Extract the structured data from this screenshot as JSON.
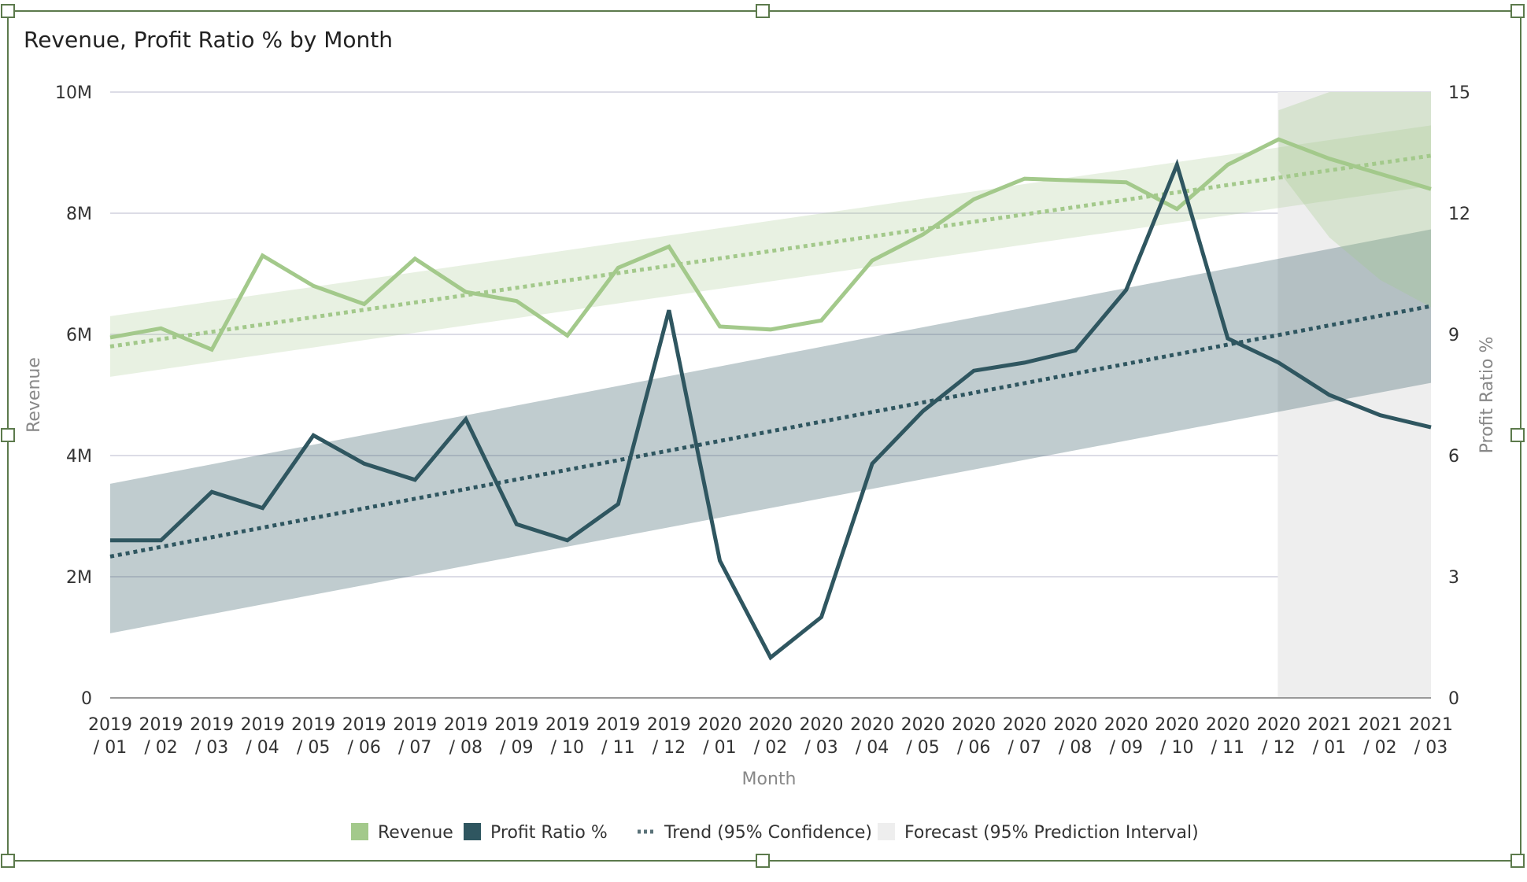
{
  "chart_data": {
    "type": "line",
    "title": "Revenue, Profit Ratio % by Month",
    "xlabel": "Month",
    "ylabel": "Revenue",
    "y2label": "Profit Ratio %",
    "ylim": [
      0,
      10000000
    ],
    "y2lim": [
      0,
      15
    ],
    "y_ticks": [
      "0",
      "2M",
      "4M",
      "6M",
      "8M",
      "10M"
    ],
    "y2_ticks": [
      "0",
      "3",
      "6",
      "9",
      "12",
      "15"
    ],
    "grid": true,
    "legend_position": "bottom",
    "categories": [
      [
        "2019",
        "/ 01"
      ],
      [
        "2019",
        "/ 02"
      ],
      [
        "2019",
        "/ 03"
      ],
      [
        "2019",
        "/ 04"
      ],
      [
        "2019",
        "/ 05"
      ],
      [
        "2019",
        "/ 06"
      ],
      [
        "2019",
        "/ 07"
      ],
      [
        "2019",
        "/ 08"
      ],
      [
        "2019",
        "/ 09"
      ],
      [
        "2019",
        "/ 10"
      ],
      [
        "2019",
        "/ 11"
      ],
      [
        "2019",
        "/ 12"
      ],
      [
        "2020",
        "/ 01"
      ],
      [
        "2020",
        "/ 02"
      ],
      [
        "2020",
        "/ 03"
      ],
      [
        "2020",
        "/ 04"
      ],
      [
        "2020",
        "/ 05"
      ],
      [
        "2020",
        "/ 06"
      ],
      [
        "2020",
        "/ 07"
      ],
      [
        "2020",
        "/ 08"
      ],
      [
        "2020",
        "/ 09"
      ],
      [
        "2020",
        "/ 10"
      ],
      [
        "2020",
        "/ 11"
      ],
      [
        "2020",
        "/ 12"
      ],
      [
        "2021",
        "/ 01"
      ],
      [
        "2021",
        "/ 02"
      ],
      [
        "2021",
        "/ 03"
      ]
    ],
    "forecast_start_index": 23,
    "series": [
      {
        "name": "Revenue",
        "axis": "left",
        "color": "#a3c98b",
        "values": [
          5950000,
          6100000,
          5750000,
          7300000,
          6800000,
          6500000,
          7250000,
          6700000,
          6550000,
          5980000,
          7100000,
          7450000,
          6130000,
          6080000,
          6230000,
          7220000,
          7650000,
          8230000,
          8570000,
          8540000,
          8510000,
          8070000,
          8800000,
          9220000,
          8900000,
          8650000,
          8400000
        ]
      },
      {
        "name": "Profit Ratio %",
        "axis": "right",
        "color": "#2f5660",
        "values": [
          3.9,
          3.9,
          5.1,
          4.7,
          6.5,
          5.8,
          5.4,
          6.9,
          4.3,
          3.9,
          4.8,
          9.6,
          3.4,
          1.0,
          2.0,
          5.8,
          7.1,
          8.1,
          8.3,
          8.6,
          10.1,
          13.2,
          8.9,
          8.3,
          7.5,
          7.0,
          6.7
        ]
      }
    ],
    "trends": [
      {
        "series": "Revenue",
        "axis": "left",
        "start": 5800000,
        "end": 8950000,
        "confidence_low": [
          5300000,
          8450000
        ],
        "confidence_high": [
          6300000,
          9450000
        ]
      },
      {
        "series": "Profit Ratio %",
        "axis": "right",
        "start": 3.5,
        "end": 9.7,
        "confidence_low": [
          1.6,
          7.8
        ],
        "confidence_high": [
          5.3,
          11.6
        ]
      }
    ],
    "forecast_interval": {
      "series": "Revenue",
      "low": [
        8700000,
        7600000,
        6900000,
        6450000
      ],
      "high": [
        9700000,
        10000000,
        10000000,
        10000000
      ]
    },
    "legend": [
      {
        "label": "Revenue",
        "kind": "swatch",
        "color": "#a3c98b"
      },
      {
        "label": "Profit Ratio %",
        "kind": "swatch",
        "color": "#2f5660"
      },
      {
        "label": "Trend (95% Confidence)",
        "kind": "dots",
        "color": "#5a7278"
      },
      {
        "label": "Forecast (95% Prediction Interval)",
        "kind": "swatch",
        "color": "#eeeeee"
      }
    ]
  }
}
